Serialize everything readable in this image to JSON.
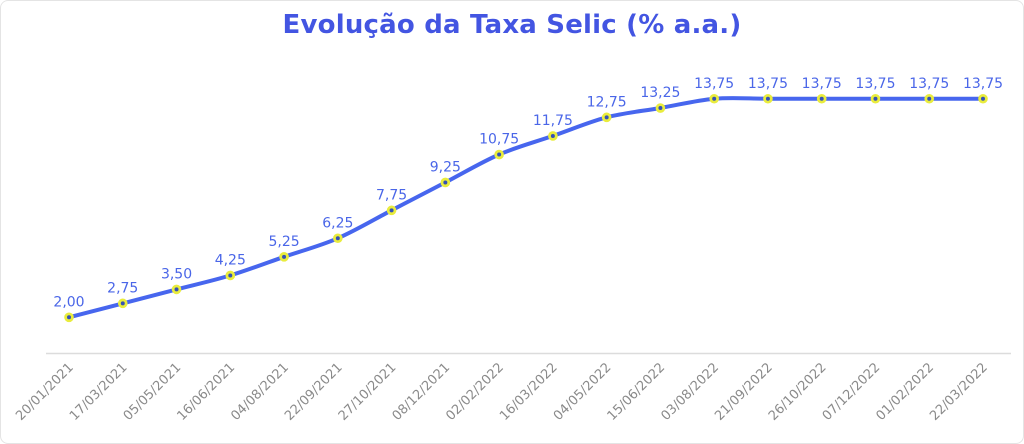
{
  "chart_data": {
    "type": "line",
    "title": "Evolução da Taxa Selic (% a.a.)",
    "x": [
      "20/01/2021",
      "17/03/2021",
      "05/05/2021",
      "16/06/2021",
      "04/08/2021",
      "22/09/2021",
      "27/10/2021",
      "08/12/2021",
      "02/02/2022",
      "16/03/2022",
      "04/05/2022",
      "15/06/2022",
      "03/08/2022",
      "21/09/2022",
      "26/10/2022",
      "07/12/2022",
      "01/02/2022",
      "22/03/2022"
    ],
    "values": [
      2.0,
      2.75,
      3.5,
      4.25,
      5.25,
      6.25,
      7.75,
      9.25,
      10.75,
      11.75,
      12.75,
      13.25,
      13.75,
      13.75,
      13.75,
      13.75,
      13.75,
      13.75
    ],
    "point_labels": [
      "2,00",
      "2,75",
      "3,50",
      "4,25",
      "5,25",
      "6,25",
      "7,75",
      "9,25",
      "10,75",
      "11,75",
      "12,75",
      "13,25",
      "13,75",
      "13,75",
      "13,75",
      "13,75",
      "13,75",
      "13,75"
    ],
    "xlabel": "",
    "ylabel": "",
    "ylim": [
      0,
      15.5
    ],
    "grid": false,
    "legend": "none",
    "marker": "dot-with-yellow-ring"
  },
  "colors": {
    "title": "#4355e2",
    "line": "#4766ee",
    "marker_fill": "#3552b4",
    "marker_ring": "#e9ec3d",
    "value_label": "#4a66e8",
    "date_label": "#8a8a8a",
    "axis_line": "#dcdcdc",
    "border": "#e4e4e4",
    "background": "#ffffff"
  }
}
